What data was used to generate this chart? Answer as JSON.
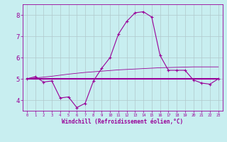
{
  "xlabel": "Windchill (Refroidissement éolien,°C)",
  "ylabel": "",
  "background_color": "#c8eef0",
  "grid_color": "#b0c8cc",
  "line_color": "#990099",
  "xlim": [
    -0.5,
    23.5
  ],
  "ylim": [
    3.5,
    8.5
  ],
  "yticks": [
    4,
    5,
    6,
    7,
    8
  ],
  "xticks": [
    0,
    1,
    2,
    3,
    4,
    5,
    6,
    7,
    8,
    9,
    10,
    11,
    12,
    13,
    14,
    15,
    16,
    17,
    18,
    19,
    20,
    21,
    22,
    23
  ],
  "series1_x": [
    0,
    1,
    2,
    3,
    4,
    5,
    6,
    7,
    8,
    9,
    10,
    11,
    12,
    13,
    14,
    15,
    16,
    17,
    18,
    19,
    20,
    21,
    22,
    23
  ],
  "series1_y": [
    5.0,
    5.1,
    4.85,
    4.9,
    4.1,
    4.15,
    3.65,
    3.85,
    4.9,
    5.5,
    6.0,
    7.1,
    7.7,
    8.1,
    8.15,
    7.9,
    6.1,
    5.4,
    5.4,
    5.4,
    4.95,
    4.8,
    4.75,
    5.0
  ],
  "series2_x": [
    0,
    1,
    2,
    3,
    4,
    5,
    6,
    7,
    8,
    9,
    10,
    11,
    12,
    13,
    14,
    15,
    16,
    17,
    18,
    19,
    20,
    21,
    22,
    23
  ],
  "series2_y": [
    5.0,
    5.0,
    5.0,
    5.0,
    5.0,
    5.0,
    5.0,
    5.0,
    5.0,
    5.0,
    5.0,
    5.0,
    5.0,
    5.0,
    5.0,
    5.0,
    5.0,
    5.0,
    5.0,
    5.0,
    5.0,
    5.0,
    5.0,
    5.0
  ],
  "series3_x": [
    0,
    1,
    2,
    3,
    4,
    5,
    6,
    7,
    8,
    9,
    10,
    11,
    12,
    13,
    14,
    15,
    16,
    17,
    18,
    19,
    20,
    21,
    22,
    23
  ],
  "series3_y": [
    5.0,
    5.04,
    5.08,
    5.12,
    5.17,
    5.22,
    5.26,
    5.3,
    5.33,
    5.36,
    5.39,
    5.42,
    5.44,
    5.46,
    5.48,
    5.5,
    5.52,
    5.53,
    5.54,
    5.55,
    5.56,
    5.56,
    5.56,
    5.56
  ]
}
